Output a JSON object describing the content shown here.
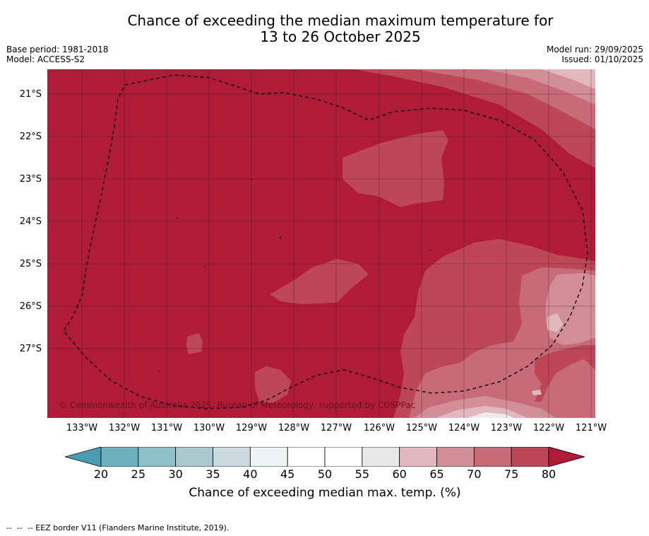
{
  "title_line1": "Chance of exceeding the median maximum temperature for",
  "title_line2": "13 to 26 October 2025",
  "base_period": "Base period: 1981-2018",
  "model": "Model: ACCESS-S2",
  "model_run": "Model run: 29/09/2025",
  "issued": "Issued: 01/10/2025",
  "copyright": "© Commonwealth of Australia 2025, Bureau of Meteorology, supported by COSPPac",
  "lat_labels": [
    "21°S",
    "22°S",
    "23°S",
    "24°S",
    "25°S",
    "26°S",
    "27°S"
  ],
  "lon_labels": [
    "133°W",
    "132°W",
    "131°W",
    "130°W",
    "129°W",
    "128°W",
    "127°W",
    "126°W",
    "125°W",
    "124°W",
    "123°W",
    "122°W",
    "121°W"
  ],
  "colorbar": {
    "ticks": [
      "20",
      "25",
      "30",
      "35",
      "40",
      "45",
      "50",
      "55",
      "60",
      "65",
      "70",
      "75",
      "80"
    ],
    "colors": [
      "#4a9db0",
      "#6fb0bf",
      "#8fbfc9",
      "#a9c9cf",
      "#cbdbdf",
      "#eef3f4",
      "#ffffff",
      "#ffffff",
      "#e8e8e8",
      "#e2b8bf",
      "#d38f98",
      "#c86b78",
      "#bd4657",
      "#b01c38"
    ],
    "label": "Chance of exceeding median max. temp. (%)"
  },
  "colors": {
    "band_80": "#b01c38",
    "band_75": "#bd4657",
    "band_70": "#c86b78",
    "band_65": "#d38f98",
    "band_60": "#e2b8bf",
    "band_55": "#ececec",
    "grid": "#3a1a1a",
    "eez": "#111111"
  },
  "footnote": "--  --  -- EEZ border V11 (Flanders Marine Institute, 2019)."
}
